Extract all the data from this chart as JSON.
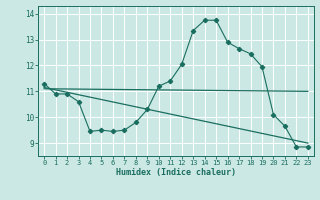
{
  "xlabel": "Humidex (Indice chaleur)",
  "bg_color": "#cce8e4",
  "grid_color": "#ffffff",
  "line_color": "#1a6e60",
  "x_ticks": [
    0,
    1,
    2,
    3,
    4,
    5,
    6,
    7,
    8,
    9,
    10,
    11,
    12,
    13,
    14,
    15,
    16,
    17,
    18,
    19,
    20,
    21,
    22,
    23
  ],
  "ylim": [
    8.5,
    14.3
  ],
  "xlim": [
    -0.5,
    23.5
  ],
  "yticks": [
    9,
    10,
    11,
    12,
    13,
    14
  ],
  "series1_x": [
    0,
    1,
    2,
    3,
    4,
    5,
    6,
    7,
    8,
    9,
    10,
    11,
    12,
    13,
    14,
    15,
    16,
    17,
    18,
    19,
    20,
    21,
    22,
    23
  ],
  "series1_y": [
    11.3,
    10.9,
    10.9,
    10.6,
    9.45,
    9.5,
    9.45,
    9.5,
    9.8,
    10.3,
    11.2,
    11.4,
    12.05,
    13.35,
    13.75,
    13.75,
    12.9,
    12.65,
    12.45,
    11.95,
    10.1,
    9.65,
    8.85,
    8.85
  ],
  "series2_x": [
    0,
    23
  ],
  "series2_y": [
    11.1,
    11.0
  ],
  "series3_x": [
    0,
    23
  ],
  "series3_y": [
    11.15,
    9.0
  ]
}
